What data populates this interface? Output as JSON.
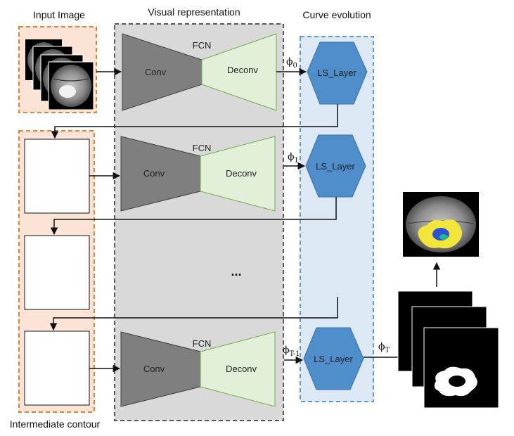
{
  "headers": {
    "input": "Input Image",
    "visual": "Visual representation",
    "curve": "Curve evolution",
    "intermediate": "Intermediate contour"
  },
  "fcn": {
    "name": "FCN",
    "conv": "Conv",
    "deconv": "Deconv"
  },
  "ls_layer": "LS_Layer",
  "ellipsis": "...",
  "phi": {
    "symbol": "ϕ",
    "subs": [
      "0",
      "1",
      "T-1",
      "T"
    ]
  },
  "colors": {
    "orange_border": "#ec7d31",
    "orange_fill": "#fbe4d5",
    "gray_panel": "#d9d9d9",
    "gray_border": "#595959",
    "blue_panel": "#dce8f4",
    "blue_border": "#5b9bd5",
    "hexagon": "#4f8ecb",
    "hexagon_border": "#3a6fa3",
    "conv": "#7f7f7f",
    "deconv": "#e2efd9",
    "deconv_border": "#70ad47",
    "tumor_yellow": "#f3e53a",
    "tumor_blue": "#2f4fd1",
    "tumor_teal": "#1fb59a"
  }
}
